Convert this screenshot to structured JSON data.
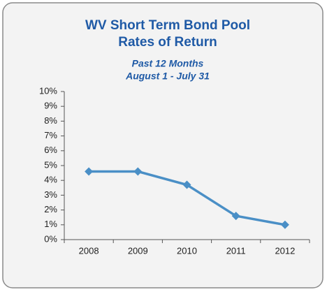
{
  "chart_data": {
    "type": "line",
    "title": [
      "WV Short Term Bond Pool",
      "Rates of Return"
    ],
    "subtitle": [
      "Past 12 Months",
      "August 1 - July 31"
    ],
    "categories": [
      "2008",
      "2009",
      "2010",
      "2011",
      "2012"
    ],
    "values": [
      4.6,
      4.6,
      3.7,
      1.6,
      1.0
    ],
    "color": "#4a8fc6",
    "ylim": [
      0,
      10
    ],
    "yticks": [
      {
        "value": 0,
        "label": "0%"
      },
      {
        "value": 1,
        "label": "1%"
      },
      {
        "value": 2,
        "label": "2%"
      },
      {
        "value": 3,
        "label": "3%"
      },
      {
        "value": 4,
        "label": "4%"
      },
      {
        "value": 5,
        "label": "5%"
      },
      {
        "value": 6,
        "label": "6%"
      },
      {
        "value": 7,
        "label": "7%"
      },
      {
        "value": 8,
        "label": "8%"
      },
      {
        "value": 9,
        "label": "9%"
      },
      {
        "value": 10,
        "label": "10%"
      }
    ]
  }
}
